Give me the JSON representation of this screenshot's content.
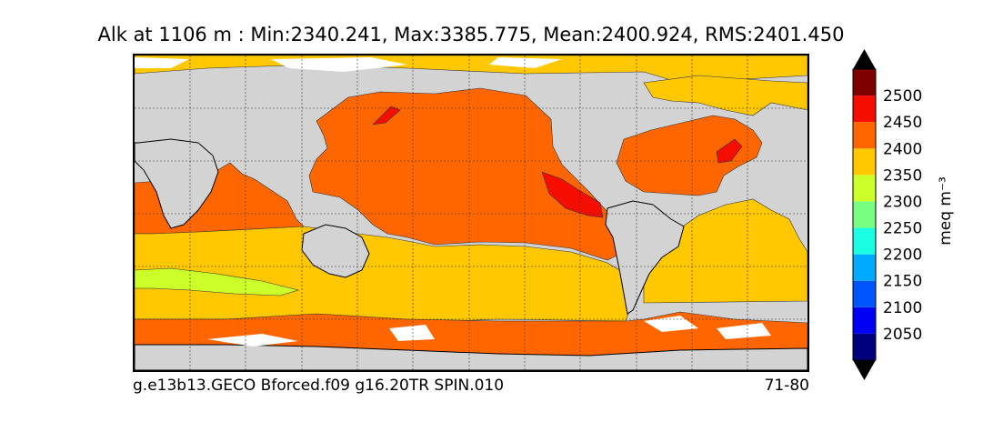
{
  "title": "Alk at 1106 m : Min:2340.241, Max:3385.775, Mean:2400.924, RMS:2401.450",
  "footer": {
    "case_name": "g.e13b13.GECO Bforced.f09 g16.20TR SPIN.010",
    "years": "71-80"
  },
  "colorbar": {
    "unit_label": "meq m⁻³",
    "ticks": [
      "2050",
      "2100",
      "2150",
      "2200",
      "2250",
      "2300",
      "2350",
      "2400",
      "2450",
      "2500"
    ],
    "levels": [
      {
        "color": "#00007f"
      },
      {
        "color": "#0000f5"
      },
      {
        "color": "#0055ff"
      },
      {
        "color": "#00aaff"
      },
      {
        "color": "#1affe3"
      },
      {
        "color": "#77ff82"
      },
      {
        "color": "#ccff2a"
      },
      {
        "color": "#ffc800"
      },
      {
        "color": "#ff6600"
      },
      {
        "color": "#f50e00"
      },
      {
        "color": "#7f0000"
      }
    ],
    "extend": "both"
  },
  "map": {
    "projection": "global cylindrical (0–360)",
    "land_color": "#d3d3d3",
    "missing_color": "#ffffff",
    "grid": "dotted",
    "dominant_value_band": "2400-2450"
  }
}
